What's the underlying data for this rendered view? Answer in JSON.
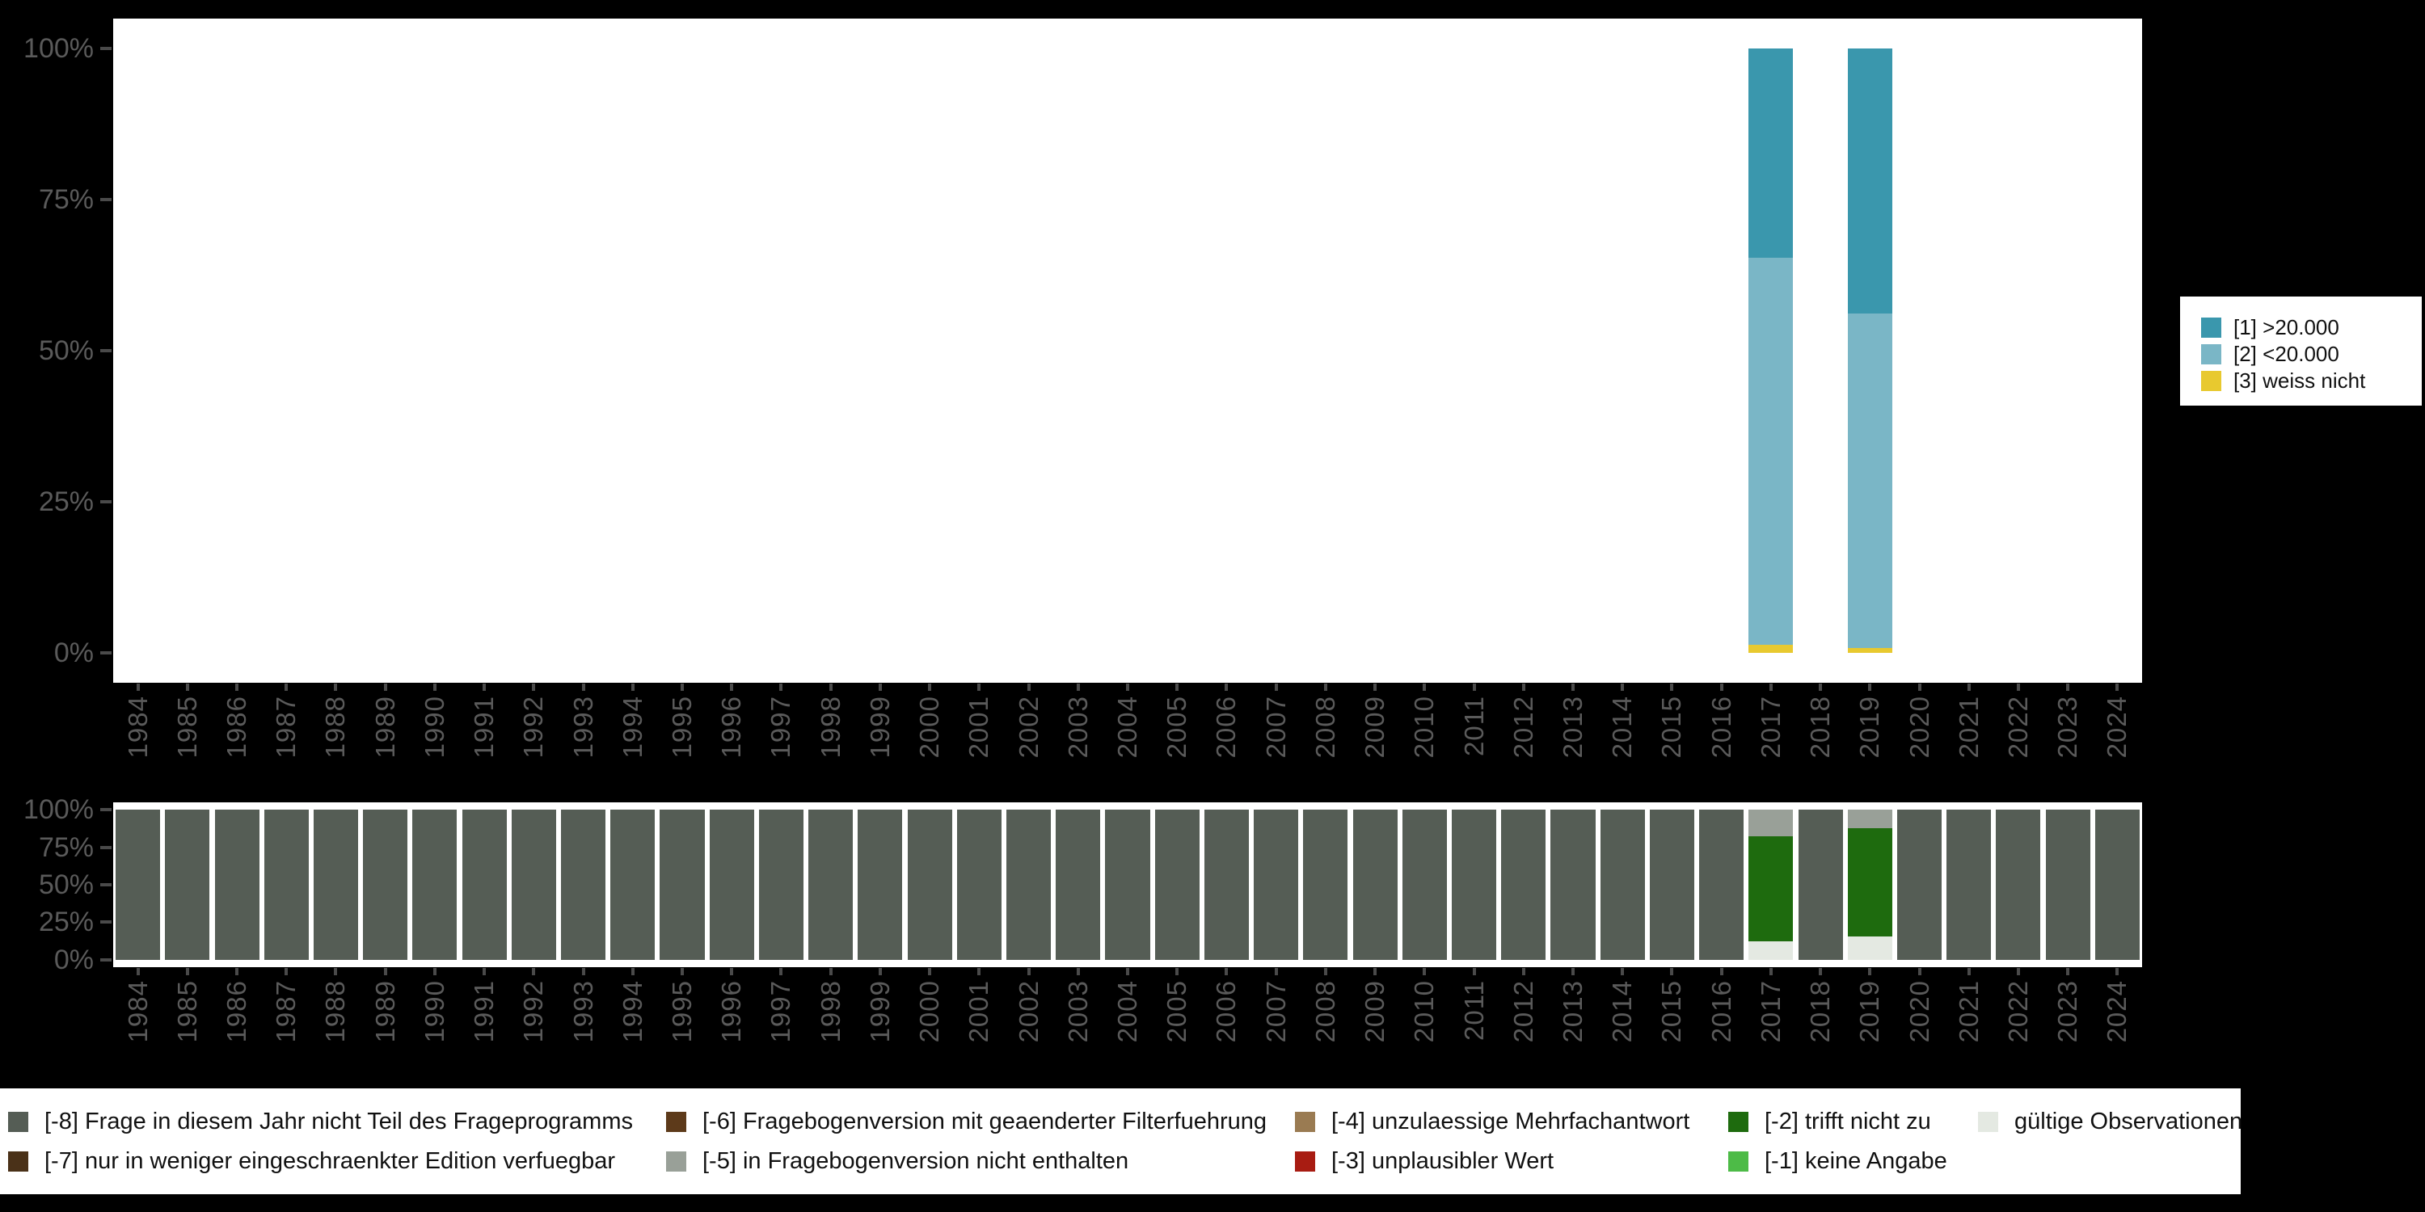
{
  "years": [
    "1984",
    "1985",
    "1986",
    "1987",
    "1988",
    "1989",
    "1990",
    "1991",
    "1992",
    "1993",
    "1994",
    "1995",
    "1996",
    "1997",
    "1998",
    "1999",
    "2000",
    "2001",
    "2002",
    "2003",
    "2004",
    "2005",
    "2006",
    "2007",
    "2008",
    "2009",
    "2010",
    "2011",
    "2012",
    "2013",
    "2014",
    "2015",
    "2016",
    "2017",
    "2018",
    "2019",
    "2020",
    "2021",
    "2022",
    "2023",
    "2024"
  ],
  "colors": {
    "[1] >20.000": "#3a97ad",
    "[2] <20.000": "#7ab6c6",
    "[3] weiss nicht": "#e8c92f",
    "[-8] Frage in diesem Jahr nicht Teil des Frageprogramms": "#555d55",
    "[-7] nur in weniger eingeschraenkter Edition verfuegbar": "#4a3118",
    "[-6] Fragebogenversion mit geaenderter Filterfuehrung": "#5d3a1a",
    "[-5] in Fragebogenversion nicht enthalten": "#99a098",
    "[-4] unzulaessige Mehrfachantwort": "#9a7b52",
    "[-3] unplausibler Wert": "#a81c12",
    "[-2] trifft nicht zu": "#1e6b0e",
    "[-1] keine Angabe": "#4dbb47",
    "gültige Observationen": "#e4e9e2"
  },
  "chart_data": [
    {
      "id": "frequencies",
      "type": "bar",
      "stacked": true,
      "unit": "percent",
      "title": "",
      "xlabel": "",
      "ylabel": "",
      "ylim": [
        0,
        100
      ],
      "yticks": [
        [
          0,
          "0%"
        ],
        [
          25,
          "25%"
        ],
        [
          50,
          "50%"
        ],
        [
          75,
          "75%"
        ],
        [
          100,
          "100%"
        ]
      ],
      "grid": false,
      "legend_position": "right",
      "legend_items": [
        "[1] >20.000",
        "[2] <20.000",
        "[3] weiss nicht"
      ],
      "default_bar": [],
      "bars": {
        "2017": [
          [
            "[1] >20.000",
            34.6
          ],
          [
            "[2] <20.000",
            64.1
          ],
          [
            "[3] weiss nicht",
            1.3
          ]
        ],
        "2019": [
          [
            "[1] >20.000",
            43.9
          ],
          [
            "[2] <20.000",
            55.3
          ],
          [
            "[3] weiss nicht",
            0.8
          ]
        ]
      }
    },
    {
      "id": "missings",
      "type": "bar",
      "stacked": true,
      "unit": "percent",
      "title": "",
      "xlabel": "",
      "ylabel": "",
      "ylim": [
        0,
        100
      ],
      "yticks": [
        [
          0,
          "0%"
        ],
        [
          25,
          "25%"
        ],
        [
          50,
          "50%"
        ],
        [
          75,
          "75%"
        ],
        [
          100,
          "100%"
        ]
      ],
      "grid": false,
      "legend_position": "bottom",
      "default_bar": [
        [
          "[-8] Frage in diesem Jahr nicht Teil des Frageprogramms",
          100
        ]
      ],
      "bars": {
        "2017": [
          [
            "[-5] in Fragebogenversion nicht enthalten",
            17.8
          ],
          [
            "[-2] trifft nicht zu",
            70.1
          ],
          [
            "gültige Observationen",
            12.1
          ]
        ],
        "2019": [
          [
            "[-5] in Fragebogenversion nicht enthalten",
            12.5
          ],
          [
            "[-2] trifft nicht zu",
            71.9
          ],
          [
            "gültige Observationen",
            15.6
          ]
        ]
      }
    }
  ],
  "legend_bottom": {
    "columns": [
      [
        "[-8] Frage in diesem Jahr nicht Teil des Frageprogramms",
        "[-7] nur in weniger eingeschraenkter Edition verfuegbar"
      ],
      [
        "[-6] Fragebogenversion mit geaenderter Filterfuehrung",
        "[-5] in Fragebogenversion nicht enthalten"
      ],
      [
        "[-4] unzulaessige Mehrfachantwort",
        "[-3] unplausibler Wert"
      ],
      [
        "[-2] trifft nicht zu",
        "[-1] keine Angabe"
      ],
      [
        "gültige Observationen"
      ]
    ]
  }
}
